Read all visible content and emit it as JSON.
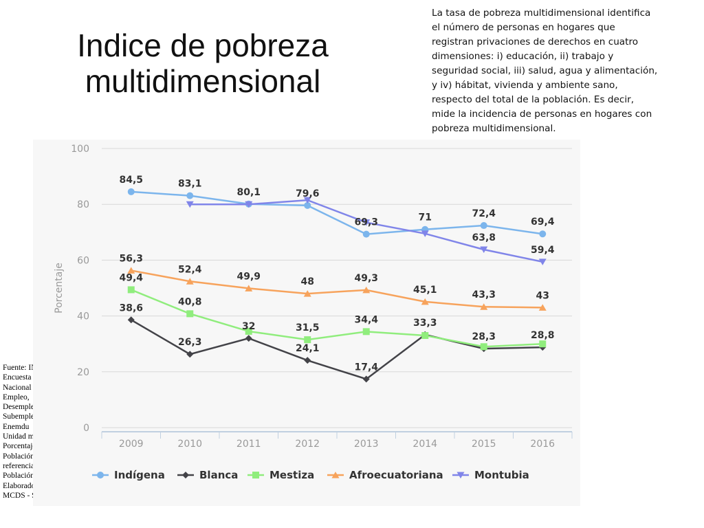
{
  "slide": {
    "title": "Indice de pobreza multidimensional",
    "definition": "La tasa de pobreza multidimensional identifica el número de personas en hogares que registran privaciones de derechos en cuatro dimensiones: i) educación, ii) trabajo y seguridad social, iii) salud, agua y alimentación, y iv) hábitat, vivienda y ambiente sano, respecto del total de la población. Es decir, mide la incidencia de personas en hogares con pobreza multidimensional.",
    "source_lines": [
      "Fuente: INEC -",
      "Encuesta",
      "Nacional de",
      "Empleo,",
      "Desempleo y",
      "Subempleo -",
      "Enemdu",
      "Unidad medida:",
      "Porcentaje",
      "Población de",
      "referencia:",
      "Población total",
      "Elaborado por:",
      "MCDS - SiCES"
    ]
  },
  "chart_data": {
    "type": "line",
    "ylabel": "Porcentaje",
    "xlabel": "",
    "ylim": [
      0,
      100
    ],
    "yticks": [
      0,
      20,
      40,
      60,
      80,
      100
    ],
    "categories": [
      "2009",
      "2010",
      "2011",
      "2012",
      "2013",
      "2014",
      "2015",
      "2016"
    ],
    "grid": true,
    "legend_position": "bottom",
    "series": [
      {
        "name": "Indígena",
        "color": "#7cb5ec",
        "marker": "circle",
        "values": [
          84.5,
          83.1,
          80.1,
          79.6,
          69.3,
          71,
          72.4,
          69.4
        ],
        "labels": [
          "84,5",
          "83,1",
          "80,1",
          "79,6",
          "69,3",
          "71",
          "72,4",
          "69,4"
        ]
      },
      {
        "name": "Blanca",
        "color": "#434348",
        "marker": "diamond",
        "values": [
          38.6,
          26.3,
          32,
          24.1,
          17.4,
          33.3,
          28.3,
          28.8
        ],
        "labels": [
          "38,6",
          "26,3",
          "32",
          "24,1",
          "17,4",
          "33,3",
          "28,3",
          "28,8"
        ]
      },
      {
        "name": "Mestiza",
        "color": "#90ed7d",
        "marker": "square",
        "values": [
          49.4,
          40.8,
          34.5,
          31.5,
          34.4,
          33,
          29,
          30
        ],
        "labels": [
          "49,4",
          "40,8",
          "",
          "31,5",
          "34,4",
          "",
          "",
          ""
        ]
      },
      {
        "name": "Afroecuatoriana",
        "color": "#f7a35c",
        "marker": "triangle",
        "values": [
          56.3,
          52.4,
          49.9,
          48,
          49.3,
          45.1,
          43.3,
          43
        ],
        "labels": [
          "56,3",
          "52,4",
          "49,9",
          "48",
          "49,3",
          "45,1",
          "43,3",
          "43"
        ]
      },
      {
        "name": "Montubia",
        "color": "#8085e9",
        "marker": "triangle-down",
        "values": [
          null,
          80,
          80,
          81.5,
          73.5,
          69.5,
          63.8,
          59.4
        ],
        "labels": [
          "",
          "",
          "",
          "",
          "",
          "",
          "63,8",
          "59,4"
        ]
      }
    ]
  }
}
